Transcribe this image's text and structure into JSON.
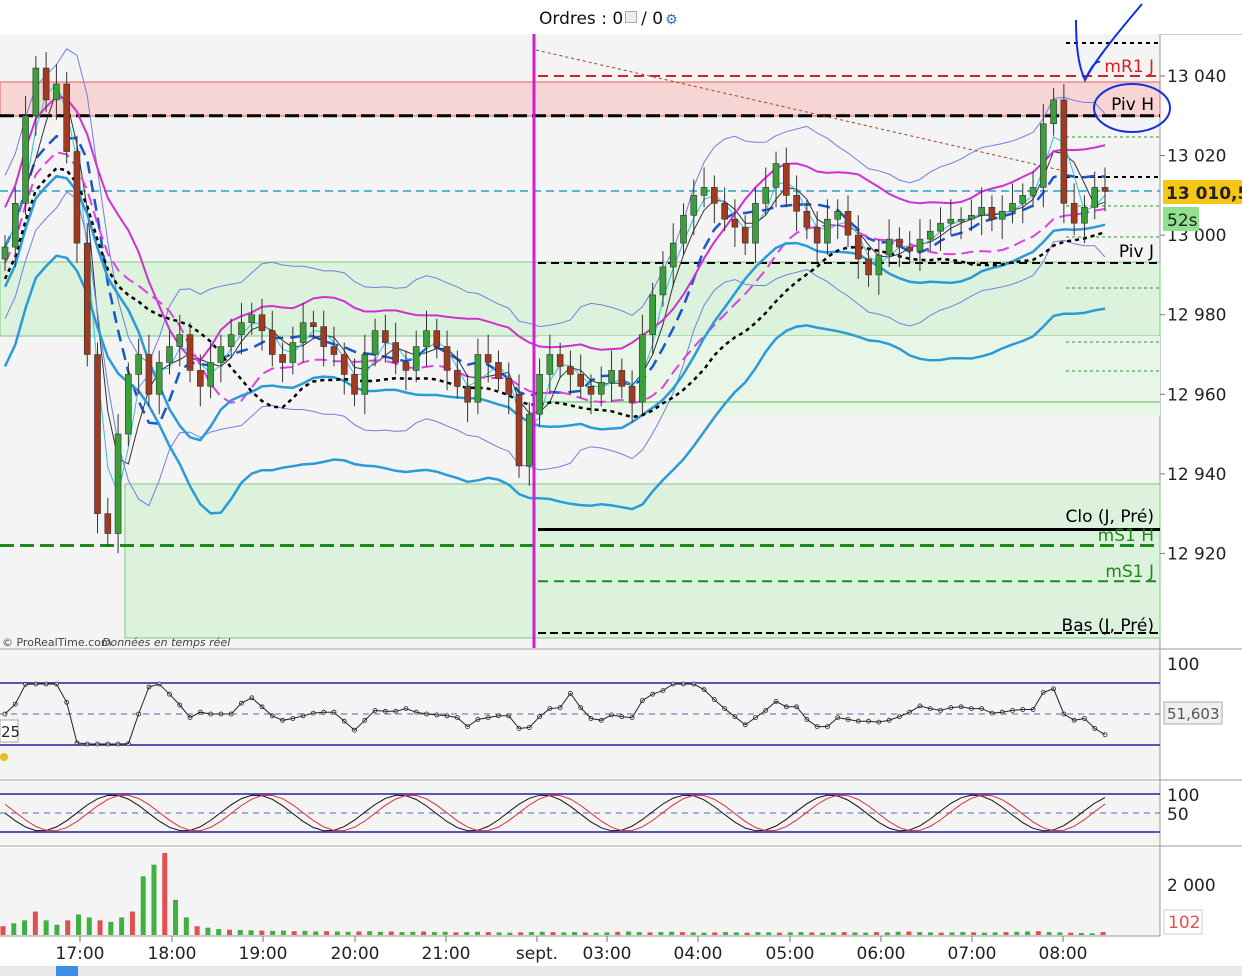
{
  "header": {
    "orders_label": "Ordres : 0",
    "orders_sep": "/ 0"
  },
  "watermark": {
    "brand": "© ProRealTime.com",
    "realtime": "Données en temps réel"
  },
  "chart_data": [
    {
      "type": "candlestick",
      "panel": "price",
      "y_ticks": [
        "13 040",
        "13 020",
        "13 000",
        "12 980",
        "12 960",
        "12 940",
        "12 920"
      ],
      "ylim": [
        12899,
        13050
      ],
      "current_price_label": "13 010,5",
      "current_price": 13010.5,
      "countdown_label": "52s",
      "levels": [
        {
          "label": "mR1 J",
          "value": 13040,
          "color": "#d62020"
        },
        {
          "label": "Piv H",
          "value": 13030,
          "color": "#000000"
        },
        {
          "label": "Piv J",
          "value": 12993,
          "color": "#000000"
        },
        {
          "label": "Clo (J, Pré)",
          "value": 12926,
          "color": "#000000"
        },
        {
          "label": "mS1 H",
          "value": 12922,
          "color": "#1b8a1b"
        },
        {
          "label": "mS1 J",
          "value": 12913,
          "color": "#1b8a1b"
        },
        {
          "label": "Bas (J, Pré)",
          "value": 12900,
          "color": "#000000"
        }
      ],
      "annotation": "Piv H",
      "candles": [
        12997,
        13008,
        13030,
        13042,
        13034,
        13038,
        13021,
        12998,
        12970,
        12930,
        12925,
        12950,
        12965,
        12970,
        12960,
        12968,
        12972,
        12975,
        12966,
        12962,
        12968,
        12972,
        12975,
        12978,
        12980,
        12976,
        12970,
        12968,
        12973,
        12978,
        12977,
        12972,
        12970,
        12965,
        12960,
        12970,
        12976,
        12973,
        12968,
        12966,
        12972,
        12976,
        12972,
        12966,
        12962,
        12958,
        12970,
        12968,
        12964,
        12960,
        12942,
        12955,
        12965,
        12970,
        12967,
        12965,
        12962,
        12960,
        12963,
        12966,
        12962,
        12958,
        12975,
        12985,
        12992,
        12998,
        13005,
        13010,
        13012,
        13008,
        13004,
        13002,
        12998,
        13008,
        13012,
        13018,
        13010,
        13006,
        13002,
        12998,
        13004,
        13006,
        13000,
        12994,
        12990,
        12995,
        12999,
        12997,
        12996,
        12999,
        13001,
        13003,
        13004,
        13004,
        13005,
        13007,
        13004,
        13006,
        13008,
        13010,
        13012,
        13028,
        13034,
        13008,
        13003,
        13007,
        13012,
        13011
      ]
    },
    {
      "type": "line",
      "panel": "oscillator",
      "y_ticks": [
        "100"
      ],
      "last_value_label": "51,603",
      "left_value_label": "25"
    },
    {
      "type": "line",
      "panel": "stochastic",
      "y_ticks": [
        "100",
        "50"
      ]
    },
    {
      "type": "bar",
      "panel": "volume",
      "y_ticks": [
        "2 000"
      ],
      "last_value_label": "102",
      "values": [
        300,
        400,
        500,
        800,
        500,
        350,
        500,
        700,
        600,
        500,
        450,
        600,
        800,
        2000,
        2400,
        2800,
        1200,
        600,
        300,
        250,
        200,
        180,
        170,
        160,
        150,
        140,
        150,
        130,
        140,
        120,
        130,
        120,
        110,
        120,
        130,
        110,
        120,
        100,
        110,
        120,
        100,
        110,
        90,
        100,
        110,
        100,
        90,
        80,
        90,
        100,
        110,
        100,
        90,
        100,
        90,
        80,
        90,
        110,
        120,
        100,
        90,
        100,
        110,
        100,
        90,
        80,
        90,
        100,
        90,
        80,
        100,
        90,
        80,
        90,
        100,
        90,
        80,
        90,
        100,
        90,
        80,
        100,
        90,
        110,
        120,
        100,
        90,
        80,
        90,
        100,
        90,
        80,
        90,
        100,
        110,
        120,
        130,
        100,
        90,
        80,
        70,
        60,
        102
      ]
    }
  ],
  "x_axis": {
    "labels": [
      "17:00",
      "18:00",
      "19:00",
      "20:00",
      "21:00",
      "sept.",
      "03:00",
      "04:00",
      "05:00",
      "06:00",
      "07:00",
      "08:00"
    ]
  }
}
